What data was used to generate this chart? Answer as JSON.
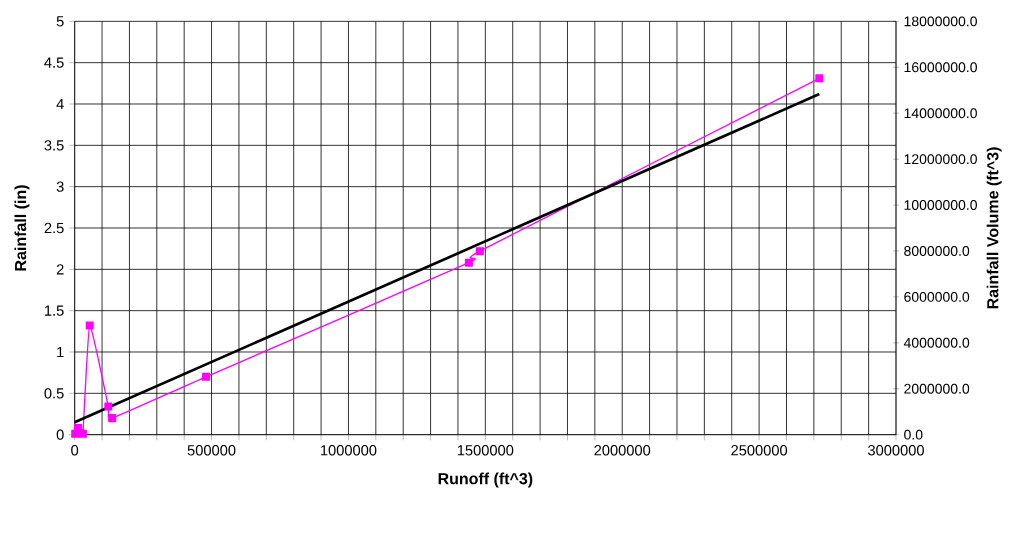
{
  "chart_data": {
    "type": "line",
    "xlabel": "Runoff (ft^3)",
    "ylabel": "Rainfall (in)",
    "y2label": "Rainfall Volume (ft^3)",
    "xlim": [
      0,
      3000000
    ],
    "ylim": [
      0,
      5
    ],
    "y2lim": [
      0,
      18000000
    ],
    "xticks": [
      0,
      {
        "value": 100000,
        "label": null
      },
      {
        "value": 200000,
        "label": null
      },
      {
        "value": 300000,
        "label": null
      },
      {
        "value": 400000,
        "label": null
      },
      500000,
      {
        "value": 600000,
        "label": null
      },
      {
        "value": 700000,
        "label": null
      },
      {
        "value": 800000,
        "label": null
      },
      {
        "value": 900000,
        "label": null
      },
      1000000,
      {
        "value": 1100000,
        "label": null
      },
      {
        "value": 1200000,
        "label": null
      },
      {
        "value": 1300000,
        "label": null
      },
      {
        "value": 1400000,
        "label": null
      },
      1500000,
      {
        "value": 1600000,
        "label": null
      },
      {
        "value": 1700000,
        "label": null
      },
      {
        "value": 1800000,
        "label": null
      },
      {
        "value": 1900000,
        "label": null
      },
      2000000,
      {
        "value": 2100000,
        "label": null
      },
      {
        "value": 2200000,
        "label": null
      },
      {
        "value": 2300000,
        "label": null
      },
      {
        "value": 2400000,
        "label": null
      },
      2500000,
      {
        "value": 2600000,
        "label": null
      },
      {
        "value": 2700000,
        "label": null
      },
      {
        "value": 2800000,
        "label": null
      },
      {
        "value": 2900000,
        "label": null
      },
      3000000
    ],
    "yticks": [
      0,
      0.5,
      1,
      1.5,
      2,
      2.5,
      3,
      3.5,
      4,
      4.5,
      5
    ],
    "y2ticks": [
      {
        "value": 0,
        "label": "0.0"
      },
      {
        "value": 2000000,
        "label": "2000000.0"
      },
      {
        "value": 4000000,
        "label": "4000000.0"
      },
      {
        "value": 6000000,
        "label": "6000000.0"
      },
      {
        "value": 8000000,
        "label": "8000000.0"
      },
      {
        "value": 10000000,
        "label": "10000000.0"
      },
      {
        "value": 12000000,
        "label": "12000000.0"
      },
      {
        "value": 14000000,
        "label": "14000000.0"
      },
      {
        "value": 16000000,
        "label": "16000000.0"
      },
      {
        "value": 18000000,
        "label": "18000000.0"
      }
    ],
    "grid": true,
    "series": [
      {
        "color": "#ff00ff",
        "marker": "square",
        "x": [
          2000,
          12000,
          18000,
          30000,
          55000,
          123000,
          137000,
          480000,
          1440000,
          1480000,
          2720000
        ],
        "values": [
          0.01,
          0.08,
          0.02,
          0.01,
          1.32,
          0.34,
          0.2,
          0.7,
          2.08,
          2.22,
          4.31
        ]
      },
      {
        "color": "#000000",
        "marker": "none",
        "x": [
          0,
          2720000
        ],
        "values": [
          0.15,
          4.12
        ]
      }
    ]
  }
}
